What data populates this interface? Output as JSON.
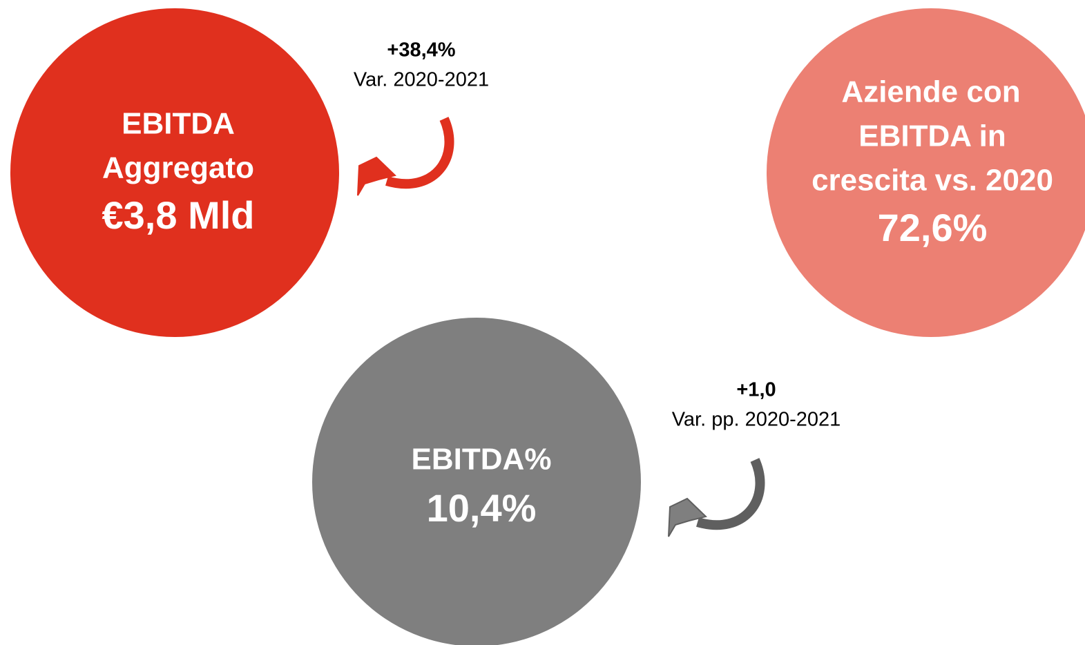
{
  "circles": [
    {
      "lines": [
        "EBITDA",
        "Aggregato"
      ],
      "value": "€3,8 Mld",
      "change": "+38,4%",
      "change_label": "Var. 2020-2021"
    },
    {
      "lines": [
        "Aziende con",
        "EBITDA in",
        "crescita vs. 2020"
      ],
      "value": "72,6%"
    },
    {
      "lines": [
        "EBITDA%"
      ],
      "value": "10,4%",
      "change": "+1,0",
      "change_label": "Var. pp. 2020-2021"
    }
  ]
}
